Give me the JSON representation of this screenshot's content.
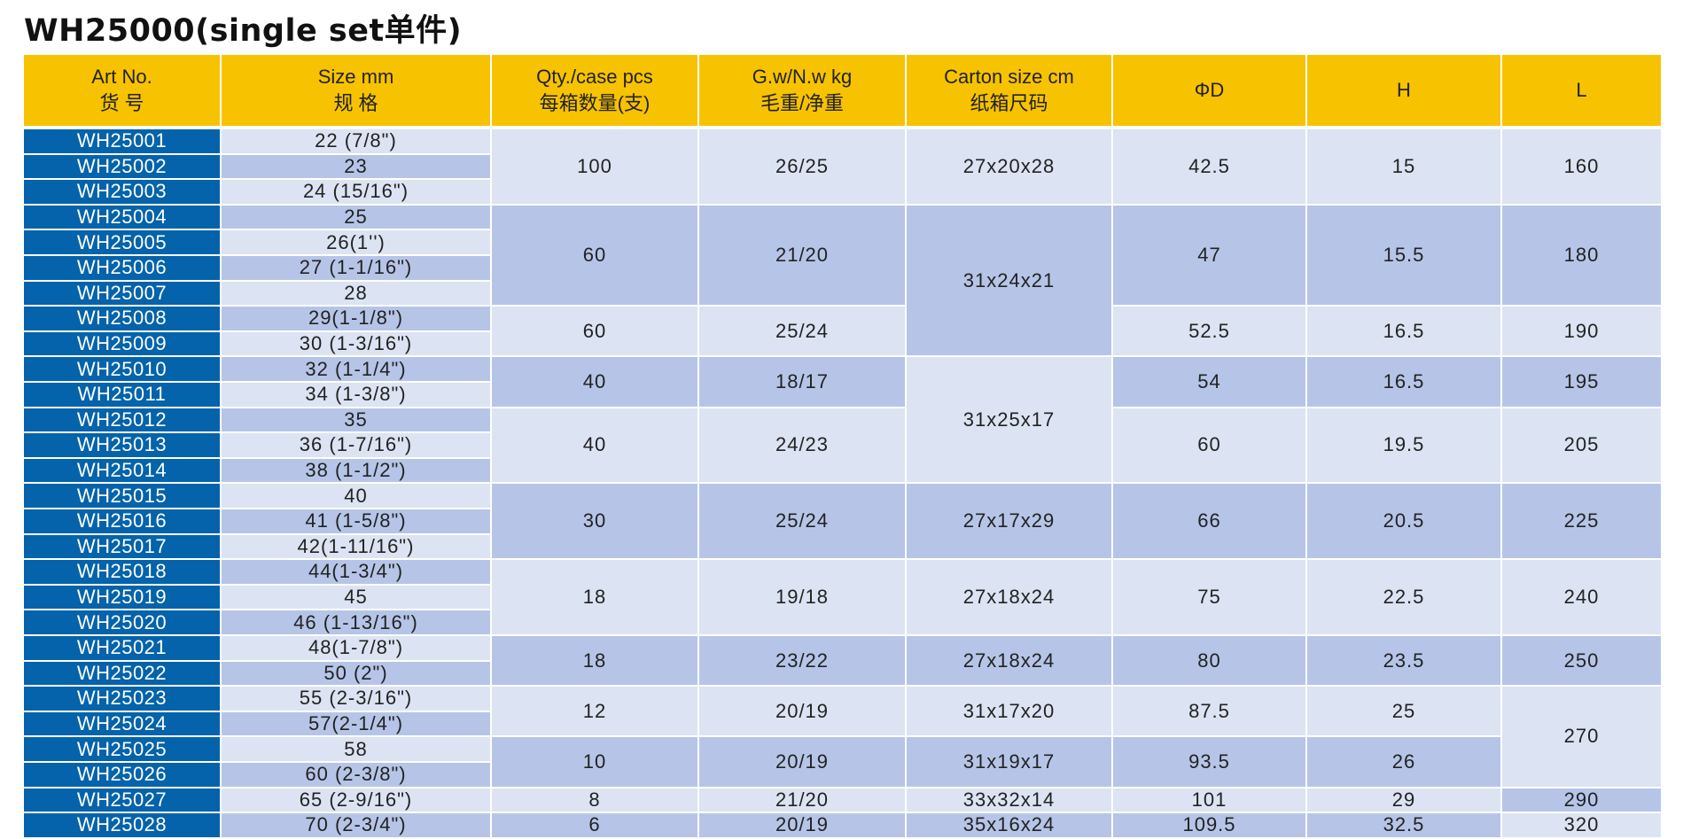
{
  "title": "WH25000(single set单件)",
  "headers": [
    {
      "en": "Art No.",
      "zh": "货 号"
    },
    {
      "en": "Size mm",
      "zh": "规 格"
    },
    {
      "en": "Qty./case pcs",
      "zh": "每箱数量(支)"
    },
    {
      "en": "G.w/N.w kg",
      "zh": "毛重/净重"
    },
    {
      "en": "Carton size cm",
      "zh": "纸箱尺码"
    },
    {
      "en": "ΦD",
      "zh": ""
    },
    {
      "en": "H",
      "zh": ""
    },
    {
      "en": "L",
      "zh": ""
    }
  ],
  "rows": [
    {
      "art": "WH25001",
      "size": "22 (7/8\")"
    },
    {
      "art": "WH25002",
      "size": "23"
    },
    {
      "art": "WH25003",
      "size": "24 (15/16\")"
    },
    {
      "art": "WH25004",
      "size": "25"
    },
    {
      "art": "WH25005",
      "size": "26(1'')"
    },
    {
      "art": "WH25006",
      "size": "27 (1-1/16\")"
    },
    {
      "art": "WH25007",
      "size": "28"
    },
    {
      "art": "WH25008",
      "size": "29(1-1/8\")"
    },
    {
      "art": "WH25009",
      "size": "30 (1-3/16\")"
    },
    {
      "art": "WH25010",
      "size": "32 (1-1/4\")"
    },
    {
      "art": "WH25011",
      "size": "34 (1-3/8\")"
    },
    {
      "art": "WH25012",
      "size": "35"
    },
    {
      "art": "WH25013",
      "size": "36 (1-7/16\")"
    },
    {
      "art": "WH25014",
      "size": "38 (1-1/2\")"
    },
    {
      "art": "WH25015",
      "size": "40"
    },
    {
      "art": "WH25016",
      "size": "41 (1-5/8\")"
    },
    {
      "art": "WH25017",
      "size": "42(1-11/16\")"
    },
    {
      "art": "WH25018",
      "size": "44(1-3/4\")"
    },
    {
      "art": "WH25019",
      "size": "45"
    },
    {
      "art": "WH25020",
      "size": "46 (1-13/16\")"
    },
    {
      "art": "WH25021",
      "size": "48(1-7/8\")"
    },
    {
      "art": "WH25022",
      "size": "50 (2\")"
    },
    {
      "art": "WH25023",
      "size": "55 (2-3/16\")"
    },
    {
      "art": "WH25024",
      "size": "57(2-1/4\")"
    },
    {
      "art": "WH25025",
      "size": "58"
    },
    {
      "art": "WH25026",
      "size": "60 (2-3/8\")"
    },
    {
      "art": "WH25027",
      "size": "65 (2-9/16\")"
    },
    {
      "art": "WH25028",
      "size": "70 (2-3/4\")"
    }
  ],
  "groups": {
    "qty": [
      {
        "first": 0,
        "count": 3,
        "text": "100"
      },
      {
        "first": 3,
        "count": 4,
        "text": "60"
      },
      {
        "first": 7,
        "count": 2,
        "text": "60"
      },
      {
        "first": 9,
        "count": 2,
        "text": "40"
      },
      {
        "first": 11,
        "count": 3,
        "text": "40"
      },
      {
        "first": 14,
        "count": 3,
        "text": "30"
      },
      {
        "first": 17,
        "count": 3,
        "text": "18"
      },
      {
        "first": 20,
        "count": 2,
        "text": "18"
      },
      {
        "first": 22,
        "count": 2,
        "text": "12"
      },
      {
        "first": 24,
        "count": 2,
        "text": "10"
      },
      {
        "first": 26,
        "count": 1,
        "text": "8"
      },
      {
        "first": 27,
        "count": 1,
        "text": "6"
      }
    ],
    "gw": [
      {
        "first": 0,
        "count": 3,
        "text": "26/25"
      },
      {
        "first": 3,
        "count": 4,
        "text": "21/20"
      },
      {
        "first": 7,
        "count": 2,
        "text": "25/24"
      },
      {
        "first": 9,
        "count": 2,
        "text": "18/17"
      },
      {
        "first": 11,
        "count": 3,
        "text": "24/23"
      },
      {
        "first": 14,
        "count": 3,
        "text": "25/24"
      },
      {
        "first": 17,
        "count": 3,
        "text": "19/18"
      },
      {
        "first": 20,
        "count": 2,
        "text": "23/22"
      },
      {
        "first": 22,
        "count": 2,
        "text": "20/19"
      },
      {
        "first": 24,
        "count": 2,
        "text": "20/19"
      },
      {
        "first": 26,
        "count": 1,
        "text": "21/20"
      },
      {
        "first": 27,
        "count": 1,
        "text": "20/19"
      }
    ],
    "carton": [
      {
        "first": 0,
        "count": 3,
        "text": "27x20x28"
      },
      {
        "first": 3,
        "count": 6,
        "text": "31x24x21"
      },
      {
        "first": 9,
        "count": 5,
        "text": "31x25x17"
      },
      {
        "first": 14,
        "count": 3,
        "text": "27x17x29"
      },
      {
        "first": 17,
        "count": 3,
        "text": "27x18x24"
      },
      {
        "first": 20,
        "count": 2,
        "text": "27x18x24"
      },
      {
        "first": 22,
        "count": 2,
        "text": "31x17x20"
      },
      {
        "first": 24,
        "count": 2,
        "text": "31x19x17"
      },
      {
        "first": 26,
        "count": 1,
        "text": "33x32x14"
      },
      {
        "first": 27,
        "count": 1,
        "text": "35x16x24"
      }
    ],
    "d": [
      {
        "first": 0,
        "count": 3,
        "text": "42.5"
      },
      {
        "first": 3,
        "count": 4,
        "text": "47"
      },
      {
        "first": 7,
        "count": 2,
        "text": "52.5"
      },
      {
        "first": 9,
        "count": 2,
        "text": "54"
      },
      {
        "first": 11,
        "count": 3,
        "text": "60"
      },
      {
        "first": 14,
        "count": 3,
        "text": "66"
      },
      {
        "first": 17,
        "count": 3,
        "text": "75"
      },
      {
        "first": 20,
        "count": 2,
        "text": "80"
      },
      {
        "first": 22,
        "count": 2,
        "text": "87.5"
      },
      {
        "first": 24,
        "count": 2,
        "text": "93.5"
      },
      {
        "first": 26,
        "count": 1,
        "text": "101"
      },
      {
        "first": 27,
        "count": 1,
        "text": "109.5"
      }
    ],
    "h": [
      {
        "first": 0,
        "count": 3,
        "text": "15"
      },
      {
        "first": 3,
        "count": 4,
        "text": "15.5"
      },
      {
        "first": 7,
        "count": 2,
        "text": "16.5"
      },
      {
        "first": 9,
        "count": 2,
        "text": "16.5"
      },
      {
        "first": 11,
        "count": 3,
        "text": "19.5"
      },
      {
        "first": 14,
        "count": 3,
        "text": "20.5"
      },
      {
        "first": 17,
        "count": 3,
        "text": "22.5"
      },
      {
        "first": 20,
        "count": 2,
        "text": "23.5"
      },
      {
        "first": 22,
        "count": 2,
        "text": "25"
      },
      {
        "first": 24,
        "count": 2,
        "text": "26"
      },
      {
        "first": 26,
        "count": 1,
        "text": "29"
      },
      {
        "first": 27,
        "count": 1,
        "text": "32.5"
      }
    ],
    "l": [
      {
        "first": 0,
        "count": 3,
        "text": "160"
      },
      {
        "first": 3,
        "count": 4,
        "text": "180"
      },
      {
        "first": 7,
        "count": 2,
        "text": "190"
      },
      {
        "first": 9,
        "count": 2,
        "text": "195"
      },
      {
        "first": 11,
        "count": 3,
        "text": "205"
      },
      {
        "first": 14,
        "count": 3,
        "text": "225"
      },
      {
        "first": 17,
        "count": 3,
        "text": "240"
      },
      {
        "first": 20,
        "count": 2,
        "text": "250"
      },
      {
        "first": 22,
        "count": 4,
        "text": "270"
      },
      {
        "first": 26,
        "count": 1,
        "text": "290"
      },
      {
        "first": 27,
        "count": 1,
        "text": "320"
      }
    ]
  },
  "colors": {
    "header": "#f7c200",
    "art_cell": "#0463aa",
    "row_light": "#dce4f3",
    "row_mid": "#b6c5e7"
  }
}
